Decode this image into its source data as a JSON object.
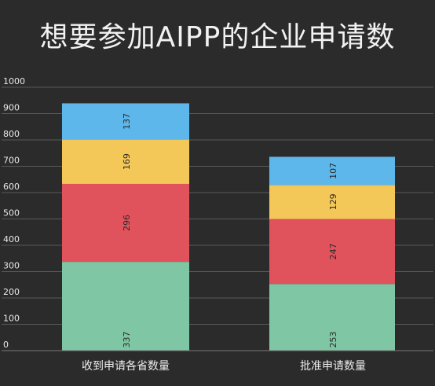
{
  "chart_data": {
    "type": "bar",
    "stacked": true,
    "title": "想要参加AIPP的企业申请数",
    "categories": [
      "收到申请各省数量",
      "批准申请数量"
    ],
    "series": [
      {
        "values": [
          337,
          253
        ],
        "color": "#7fc6a4"
      },
      {
        "values": [
          296,
          247
        ],
        "color": "#e0535c"
      },
      {
        "values": [
          169,
          129
        ],
        "color": "#f4c858"
      },
      {
        "values": [
          137,
          107
        ],
        "color": "#5eb7ea"
      }
    ],
    "ylim": [
      0,
      1000
    ],
    "yticks": [
      0,
      100,
      200,
      300,
      400,
      500,
      600,
      700,
      800,
      900,
      1000
    ],
    "grid": true,
    "legend": "none"
  }
}
